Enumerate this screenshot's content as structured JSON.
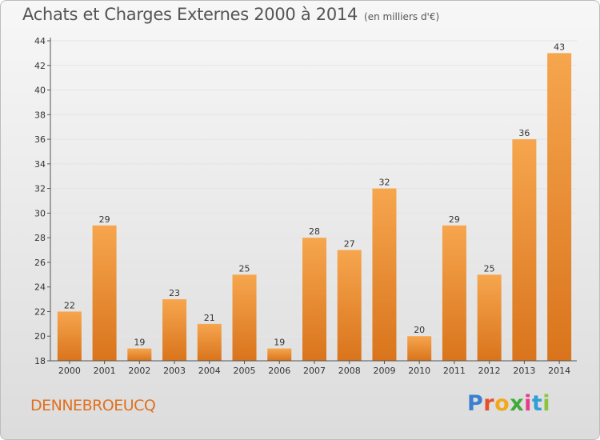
{
  "header": {
    "title": "Achats et Charges Externes 2000 à 2014",
    "unit": "(en milliers d'€)"
  },
  "footer": {
    "commune": "DENNEBROEUCQ",
    "logo_letters": [
      "P",
      "r",
      "o",
      "x",
      "i",
      "t",
      "i"
    ],
    "logo_colors": [
      "#3a7fd0",
      "#e4502c",
      "#f2a81d",
      "#3faa3a",
      "#e43c8c",
      "#2f9fd6",
      "#8bc53f"
    ]
  },
  "colors": {
    "bar_top": "#f6a64e",
    "bar_bottom": "#d9741c",
    "commune": "#e0701f"
  },
  "chart_data": {
    "type": "bar",
    "title": "Achats et Charges Externes 2000 à 2014",
    "subtitle": "(en milliers d'€)",
    "categories": [
      "2000",
      "2001",
      "2002",
      "2003",
      "2004",
      "2005",
      "2006",
      "2007",
      "2008",
      "2009",
      "2010",
      "2011",
      "2012",
      "2013",
      "2014"
    ],
    "values": [
      22,
      29,
      19,
      23,
      21,
      25,
      19,
      28,
      27,
      32,
      20,
      29,
      25,
      36,
      43
    ],
    "ylim": [
      18,
      44
    ],
    "yticks": [
      18,
      20,
      22,
      24,
      26,
      28,
      30,
      32,
      34,
      36,
      38,
      40,
      42,
      44
    ],
    "grid": true,
    "xlabel": "",
    "ylabel": ""
  }
}
